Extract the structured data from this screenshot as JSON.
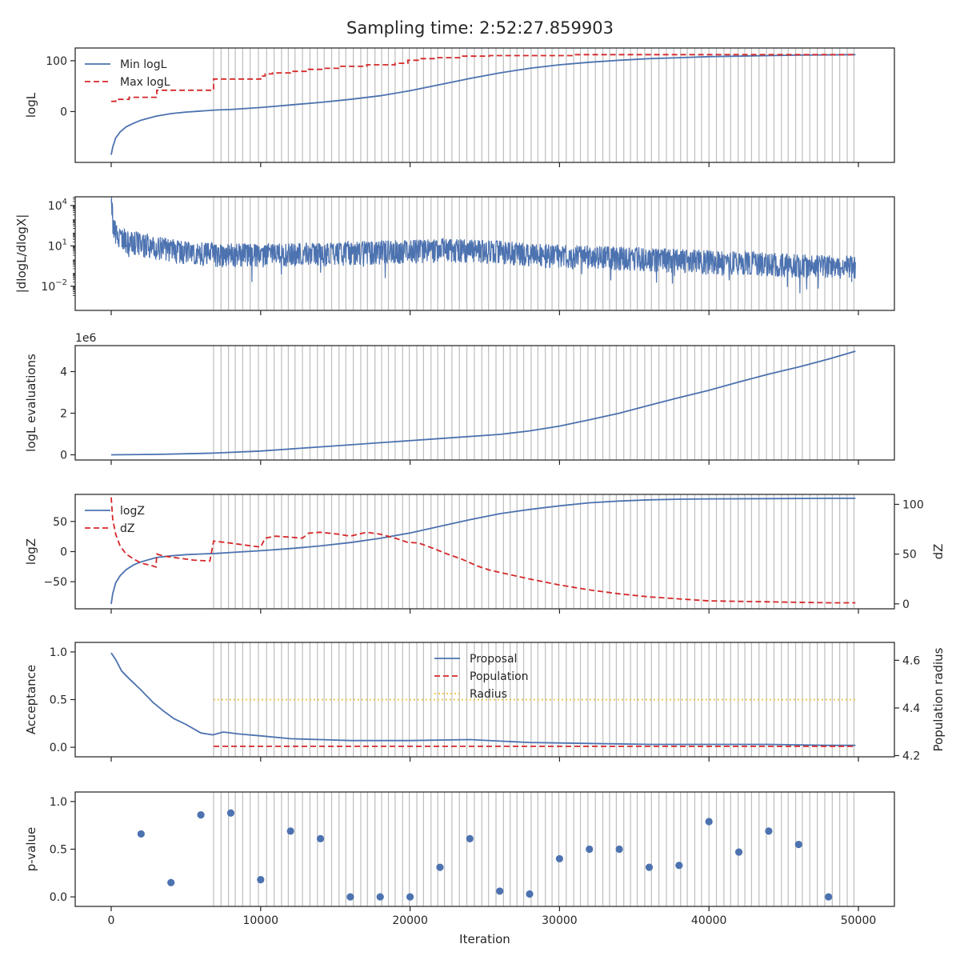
{
  "figure": {
    "title": "Sampling time: 2:52:27.859903",
    "xlabel": "Iteration",
    "x_ticks": [
      0,
      10000,
      20000,
      30000,
      40000,
      50000
    ]
  },
  "colors": {
    "blue": "#4c72b0",
    "red": "#d62728",
    "gold": "#f0c040",
    "grid": "#bdbdbd",
    "axes": "#262626"
  },
  "vlines_x": [
    6850,
    7350,
    7850,
    8300,
    8800,
    9300,
    9850,
    10400,
    10900,
    11400,
    11850,
    12300,
    12800,
    13300,
    13800,
    14250,
    14750,
    15250,
    15700,
    16200,
    16700,
    17150,
    17650,
    18100,
    18550,
    19000,
    19500,
    19950,
    20450,
    20900,
    21400,
    21850,
    22300,
    22800,
    23300,
    23800,
    24300,
    24800,
    25250,
    25750,
    26250,
    26700,
    27150,
    27600,
    28100,
    28550,
    29050,
    29500,
    29950,
    30450,
    30950,
    31400,
    31900,
    32400,
    32900,
    33350,
    33800,
    34300,
    34750,
    35200,
    35700,
    36150,
    36650,
    37150,
    37650,
    38100,
    38550,
    39050,
    39500,
    40000,
    40500,
    41000,
    41450,
    41950,
    42400,
    42850,
    43350,
    43850,
    44350,
    44850,
    45300,
    45800,
    46250,
    46750,
    47250,
    47750,
    48250,
    48750,
    49250,
    49700
  ],
  "chart_data": [
    {
      "type": "line",
      "ylabel": "logL",
      "y_ticks": [
        0,
        100
      ],
      "ylim": [
        -100,
        125
      ],
      "legend": {
        "placement": "upper-left"
      },
      "series": [
        {
          "name": "Min logL",
          "style": "solid",
          "color": "#4c72b0",
          "x": [
            0,
            100,
            300,
            600,
            1000,
            1500,
            2000,
            3000,
            4000,
            5000,
            6000,
            7000,
            8000,
            10000,
            12000,
            14000,
            16000,
            18000,
            20000,
            22000,
            24000,
            26000,
            28000,
            30000,
            32000,
            34000,
            36000,
            38000,
            40000,
            42000,
            44000,
            46000,
            48000,
            49800
          ],
          "y": [
            -85,
            -70,
            -52,
            -40,
            -30,
            -23,
            -17,
            -9,
            -4,
            -1,
            1,
            3,
            4,
            8,
            13,
            18,
            24,
            31,
            41,
            53,
            65,
            76,
            85,
            92,
            97,
            101,
            104,
            106,
            108,
            109,
            110,
            111,
            111.5,
            112
          ]
        },
        {
          "name": "Max logL",
          "style": "dashed",
          "color": "#d62728",
          "x": [
            0,
            300,
            300,
            1200,
            1200,
            3000,
            3000,
            3050,
            3050,
            5000,
            5000,
            6600,
            6600,
            6850,
            6850,
            10000,
            10000,
            10300,
            10300,
            10800,
            10800,
            12000,
            12000,
            13200,
            13200,
            14200,
            14200,
            15200,
            15200,
            17100,
            17100,
            19000,
            19000,
            19850,
            19850,
            20600,
            20600,
            21800,
            21800,
            23450,
            23450,
            25300,
            25300,
            31000,
            31000,
            49800
          ],
          "y": [
            20,
            20,
            24,
            24,
            28,
            28,
            28,
            28,
            42,
            42,
            42,
            42,
            42,
            42,
            64,
            64,
            70,
            70,
            74,
            74,
            76,
            76,
            79,
            79,
            83,
            83,
            85,
            85,
            89,
            89,
            92,
            92,
            95,
            95,
            101,
            101,
            104,
            104,
            106,
            106,
            109,
            109,
            110,
            110,
            112,
            112
          ]
        }
      ]
    },
    {
      "type": "line",
      "ylabel": "|dlogL/dlogX|",
      "yscale": "log",
      "y_tick_labels": [
        {
          "value": 10000,
          "base": "10",
          "exp": "4"
        },
        {
          "value": 10,
          "base": "10",
          "exp": "1"
        },
        {
          "value": 0.01,
          "base": "10",
          "exp": "−2"
        }
      ],
      "ylim_log10": [
        -3.8,
        4.65
      ],
      "series": [
        {
          "name": "",
          "color": "#4c72b0",
          "x": [
            0,
            100,
            300,
            600,
            1000,
            2000,
            3000,
            4000,
            5000,
            6000,
            7000,
            8000,
            10000,
            12000,
            15000,
            20000,
            22000,
            24000,
            26000,
            28000,
            30000,
            35000,
            40000,
            44000,
            46000,
            48000,
            49800
          ],
          "y": [
            30000,
            800,
            150,
            70,
            40,
            25,
            15,
            8,
            6,
            5,
            4,
            4,
            4,
            4,
            5,
            7,
            9,
            8,
            6,
            4,
            3,
            2,
            1.2,
            0.8,
            0.6,
            0.5,
            0.5
          ],
          "noise_decades": [
            -1.6,
            0.6
          ]
        }
      ]
    },
    {
      "type": "line",
      "ylabel": "logL evaluations",
      "y_ticks": [
        0,
        2,
        4
      ],
      "y_scale_label": "1e6",
      "ylim": [
        -0.25,
        5.25
      ],
      "series": [
        {
          "name": "",
          "color": "#4c72b0",
          "x": [
            0,
            3000,
            6850,
            10000,
            14000,
            18000,
            22000,
            26000,
            28000,
            30000,
            32000,
            34000,
            36000,
            38000,
            40000,
            42000,
            44000,
            46000,
            48000,
            49800
          ],
          "y": [
            0,
            0.02,
            0.08,
            0.18,
            0.38,
            0.58,
            0.78,
            0.98,
            1.15,
            1.38,
            1.68,
            2.0,
            2.38,
            2.75,
            3.1,
            3.5,
            3.88,
            4.22,
            4.6,
            4.98
          ]
        }
      ]
    },
    {
      "type": "line",
      "ylabel": "logZ",
      "ylabel_right": "dZ",
      "y_ticks": [
        -50,
        0,
        50
      ],
      "y2_ticks": [
        0,
        50,
        100
      ],
      "ylim": [
        -95,
        95
      ],
      "y2lim": [
        -5,
        110
      ],
      "legend": {
        "placement": "upper-left"
      },
      "series": [
        {
          "name": "logZ",
          "style": "solid",
          "color": "#4c72b0",
          "axis": "left",
          "x": [
            0,
            100,
            300,
            600,
            1000,
            1500,
            2000,
            3000,
            4000,
            5000,
            6000,
            7000,
            8000,
            10000,
            12000,
            14000,
            16000,
            18000,
            20000,
            22000,
            24000,
            26000,
            28000,
            30000,
            32000,
            34000,
            36000,
            38000,
            40000,
            44000,
            48000,
            49800
          ],
          "y": [
            -87,
            -70,
            -52,
            -40,
            -30,
            -22,
            -17,
            -10,
            -7,
            -5,
            -4,
            -3,
            -1.5,
            1.5,
            5,
            9.5,
            15,
            22,
            31,
            42,
            53,
            63,
            70,
            76,
            81,
            84,
            86,
            87,
            87.5,
            88,
            88.5,
            88.5
          ]
        },
        {
          "name": "dZ",
          "style": "dashed",
          "color": "#d62728",
          "axis": "right",
          "x": [
            0,
            100,
            300,
            600,
            1000,
            1500,
            2000,
            2800,
            3000,
            3050,
            3500,
            4500,
            5500,
            6600,
            6850,
            7500,
            8500,
            9500,
            10000,
            10300,
            11000,
            12000,
            12800,
            13200,
            14000,
            15200,
            16000,
            17100,
            18000,
            19000,
            19800,
            20600,
            21500,
            22500,
            23450,
            24500,
            25300,
            26500,
            28000,
            30000,
            32000,
            34000,
            36000,
            38000,
            40000,
            44000,
            48000,
            49800
          ],
          "y": [
            107,
            85,
            70,
            58,
            50,
            45,
            41,
            38,
            37,
            50,
            48,
            46,
            44,
            43,
            63,
            62,
            60,
            58,
            57,
            66,
            68,
            67,
            66,
            71,
            72,
            70,
            68,
            72,
            70,
            66,
            62,
            61,
            56,
            50,
            45,
            38,
            34,
            30,
            25,
            19,
            14,
            10,
            7,
            5,
            3,
            2,
            1,
            1
          ]
        }
      ]
    },
    {
      "type": "line",
      "ylabel": "Acceptance",
      "ylabel_right": "Population radius",
      "y_ticks": [
        0.0,
        0.5,
        1.0
      ],
      "y_tick_labels": [
        "0.0",
        "0.5",
        "1.0"
      ],
      "y2_ticks": [
        4.2,
        4.4,
        4.6
      ],
      "ylim": [
        -0.1,
        1.1
      ],
      "y2lim": [
        4.195,
        4.675
      ],
      "legend": {
        "placement": "upper-center"
      },
      "series": [
        {
          "name": "Proposal",
          "style": "solid",
          "color": "#4c72b0",
          "axis": "left",
          "x": [
            0,
            300,
            700,
            1200,
            2000,
            2800,
            3500,
            4200,
            5000,
            6000,
            6800,
            7500,
            8500,
            10000,
            12000,
            14000,
            16000,
            18000,
            20000,
            24000,
            28000,
            32000,
            36000,
            40000,
            44000,
            48000,
            49800
          ],
          "y": [
            0.99,
            0.92,
            0.8,
            0.72,
            0.6,
            0.47,
            0.38,
            0.3,
            0.24,
            0.15,
            0.13,
            0.16,
            0.14,
            0.12,
            0.09,
            0.08,
            0.07,
            0.07,
            0.07,
            0.08,
            0.05,
            0.04,
            0.03,
            0.03,
            0.03,
            0.02,
            0.02
          ]
        },
        {
          "name": "Population",
          "style": "dashed",
          "color": "#d62728",
          "axis": "left",
          "x": [
            6850,
            49800
          ],
          "y": [
            0.01,
            0.01
          ]
        },
        {
          "name": "Radius",
          "style": "dotted",
          "color": "#f0c040",
          "axis": "left",
          "x": [
            6850,
            49800
          ],
          "y": [
            0.5,
            0.5
          ]
        }
      ]
    },
    {
      "type": "scatter",
      "ylabel": "p-value",
      "y_ticks": [
        0.0,
        0.5,
        1.0
      ],
      "y_tick_labels": [
        "0.0",
        "0.5",
        "1.0"
      ],
      "ylim": [
        -0.1,
        1.1
      ],
      "series": [
        {
          "name": "",
          "color": "#4c72b0",
          "x": [
            2000,
            4000,
            6000,
            8000,
            10000,
            12000,
            14000,
            16000,
            18000,
            20000,
            22000,
            24000,
            26000,
            28000,
            30000,
            32000,
            34000,
            36000,
            38000,
            40000,
            42000,
            44000,
            46000,
            48000
          ],
          "y": [
            0.66,
            0.15,
            0.86,
            0.88,
            0.18,
            0.69,
            0.61,
            0.0,
            0.0,
            0.0,
            0.31,
            0.61,
            0.06,
            0.03,
            0.4,
            0.5,
            0.5,
            0.31,
            0.33,
            0.79,
            0.47,
            0.69,
            0.55,
            0.0
          ]
        }
      ]
    }
  ]
}
